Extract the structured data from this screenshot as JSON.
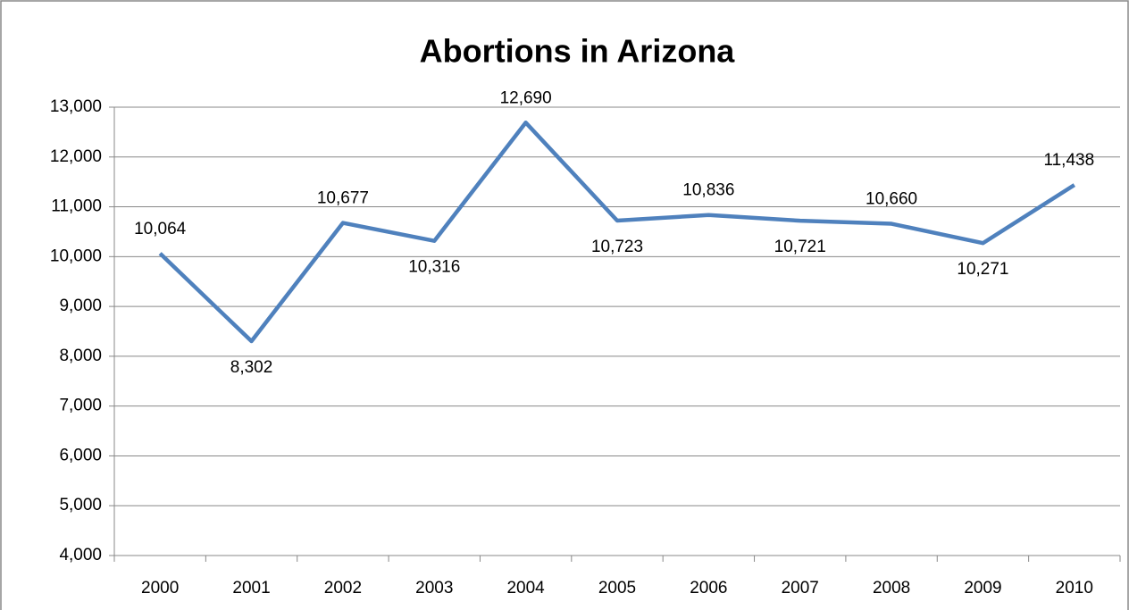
{
  "chart_data": {
    "type": "line",
    "title": "Abortions in Arizona",
    "categories": [
      "2000",
      "2001",
      "2002",
      "2003",
      "2004",
      "2005",
      "2006",
      "2007",
      "2008",
      "2009",
      "2010"
    ],
    "series": [
      {
        "name": "Abortions",
        "color": "#4f81bd",
        "values": [
          10064,
          8302,
          10677,
          10316,
          12690,
          10723,
          10836,
          10721,
          10660,
          10271,
          11438
        ],
        "value_labels": [
          "10,064",
          "8,302",
          "10,677",
          "10,316",
          "12,690",
          "10,723",
          "10,836",
          "10,721",
          "10,660",
          "10,271",
          "11,438"
        ]
      }
    ],
    "ylim": [
      4000,
      13000
    ],
    "yticks": [
      {
        "value": 4000,
        "label": "4,000"
      },
      {
        "value": 5000,
        "label": "5,000"
      },
      {
        "value": 6000,
        "label": "6,000"
      },
      {
        "value": 7000,
        "label": "7,000"
      },
      {
        "value": 8000,
        "label": "8,000"
      },
      {
        "value": 9000,
        "label": "9,000"
      },
      {
        "value": 10000,
        "label": "10,000"
      },
      {
        "value": 11000,
        "label": "11,000"
      },
      {
        "value": 12000,
        "label": "12,000"
      },
      {
        "value": 13000,
        "label": "13,000"
      }
    ],
    "grid": true,
    "legend": false
  }
}
